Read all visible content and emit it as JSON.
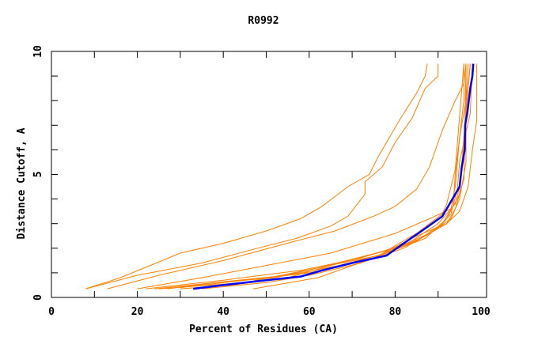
{
  "chart_data": {
    "type": "line",
    "title": "R0992",
    "xlabel": "Percent of Residues (CA)",
    "ylabel": "Distance Cutoff, A",
    "xlim": [
      0,
      100
    ],
    "ylim": [
      0,
      10
    ],
    "xticks": [
      0,
      20,
      40,
      60,
      80,
      100
    ],
    "yticks": [
      0,
      5,
      10
    ],
    "grid": false,
    "colors": {
      "models": "#ff8000",
      "highlight": "#0000ff"
    },
    "series": [
      {
        "x": [
          8,
          16,
          23,
          30,
          40,
          50,
          58,
          63,
          69,
          74,
          76,
          81,
          85,
          87,
          87.5
        ],
        "y": [
          0.35,
          0.8,
          1.3,
          1.8,
          2.2,
          2.7,
          3.2,
          3.7,
          4.5,
          5.0,
          5.7,
          7.2,
          8.3,
          9.0,
          9.5
        ]
      },
      {
        "x": [
          8,
          20,
          35,
          48,
          57,
          65,
          69,
          73,
          73,
          77,
          80,
          84,
          87,
          90,
          90
        ],
        "y": [
          0.35,
          0.9,
          1.4,
          2.0,
          2.4,
          2.9,
          3.3,
          4.2,
          4.7,
          5.3,
          6.3,
          7.3,
          8.5,
          9.0,
          9.5
        ]
      },
      {
        "x": [
          13,
          25,
          40,
          57,
          66,
          75,
          80,
          85,
          88,
          91,
          94,
          96,
          96.5
        ],
        "y": [
          0.35,
          0.9,
          1.5,
          2.3,
          2.7,
          3.3,
          3.7,
          4.4,
          5.3,
          6.8,
          8.0,
          8.7,
          9.5
        ]
      },
      {
        "x": [
          20,
          35,
          50,
          65,
          80,
          88,
          93,
          94,
          95,
          96,
          96
        ],
        "y": [
          0.35,
          0.8,
          1.3,
          1.8,
          2.6,
          3.2,
          3.6,
          4.5,
          6.5,
          8.0,
          9.5
        ]
      },
      {
        "x": [
          47,
          62,
          75,
          85,
          92,
          95,
          97,
          98,
          99,
          99
        ],
        "y": [
          0.35,
          0.8,
          1.6,
          2.5,
          3.0,
          3.5,
          4.5,
          6.0,
          7.2,
          9.5
        ]
      },
      {
        "x": [
          25,
          45,
          62,
          80,
          88,
          93,
          95,
          96.5,
          96.5
        ],
        "y": [
          0.35,
          0.6,
          1.2,
          2.0,
          2.6,
          3.2,
          4.0,
          5.5,
          9.5
        ]
      },
      {
        "x": [
          30,
          45,
          60,
          75,
          85,
          91,
          93.5,
          94,
          95,
          97,
          97.5
        ],
        "y": [
          0.4,
          0.7,
          1.0,
          1.6,
          2.3,
          3.0,
          3.7,
          5.0,
          6.5,
          8.5,
          9.5
        ]
      },
      {
        "x": [
          27,
          38,
          55,
          67,
          78,
          87,
          92,
          95,
          96,
          97.5
        ],
        "y": [
          0.35,
          0.6,
          0.9,
          1.3,
          1.8,
          2.4,
          3.2,
          4.2,
          6.5,
          9.5
        ]
      },
      {
        "x": [
          35,
          50,
          60,
          72,
          82,
          90,
          93,
          94.5,
          95,
          97.5,
          98
        ],
        "y": [
          0.35,
          0.6,
          0.9,
          1.4,
          2.0,
          2.8,
          3.4,
          4.4,
          5.5,
          7.5,
          9.5
        ]
      },
      {
        "x": [
          22,
          40,
          58,
          72,
          83,
          90,
          94,
          95,
          96,
          97
        ],
        "y": [
          0.35,
          0.7,
          1.1,
          1.6,
          2.2,
          3.0,
          3.8,
          4.5,
          6.0,
          9.5
        ]
      },
      {
        "x": [
          30,
          42,
          55,
          65,
          78,
          85,
          91,
          92,
          94,
          96
        ],
        "y": [
          0.35,
          0.5,
          0.8,
          1.3,
          1.9,
          2.6,
          3.4,
          3.8,
          5.2,
          9.5
        ]
      },
      {
        "x": [
          24,
          38,
          52,
          62,
          76,
          86,
          92,
          94,
          96,
          96.5
        ],
        "y": [
          0.35,
          0.6,
          0.8,
          1.2,
          1.7,
          2.4,
          3.0,
          3.6,
          4.8,
          9.5
        ]
      },
      {
        "x": [
          33,
          40,
          50,
          58,
          63,
          70,
          78,
          82,
          87,
          91,
          93,
          95,
          95.5,
          96.2,
          96.3,
          96.8,
          97.5,
          98,
          98.2
        ],
        "y": [
          0.35,
          0.5,
          0.7,
          0.85,
          1.1,
          1.4,
          1.7,
          2.2,
          2.8,
          3.3,
          3.9,
          4.5,
          5.3,
          6.0,
          7.0,
          7.5,
          8.5,
          9.0,
          9.5
        ],
        "highlight": true
      }
    ]
  }
}
